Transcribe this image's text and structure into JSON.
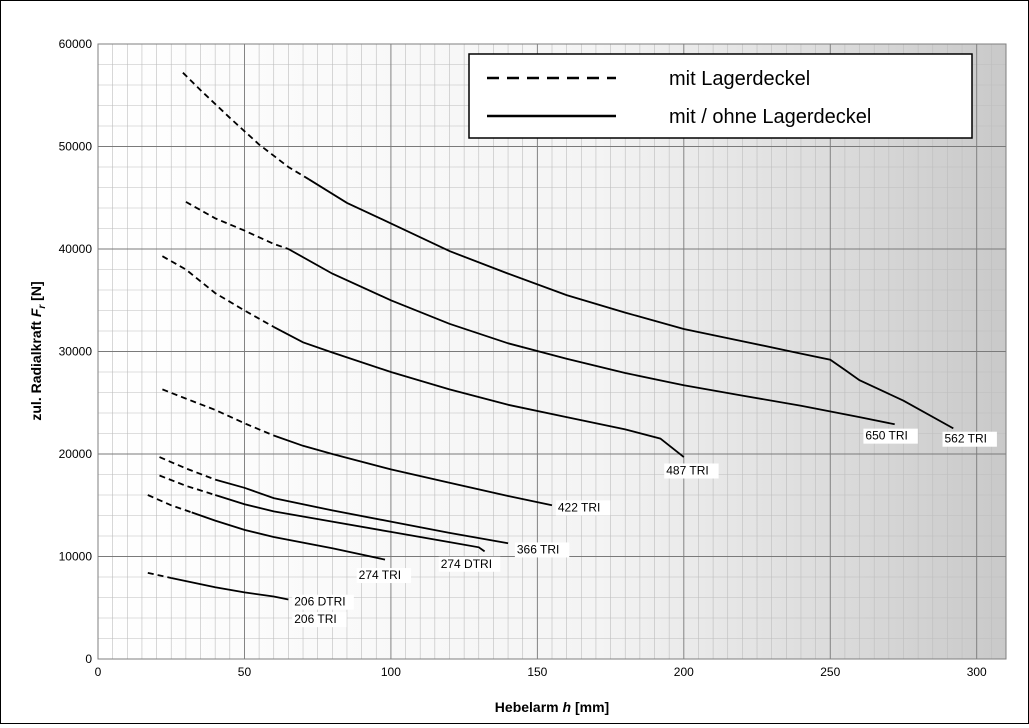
{
  "chart_data": {
    "type": "line",
    "xlabel_main": "Hebelarm ",
    "xlabel_var": "h",
    "xlabel_unit": " [mm]",
    "ylabel_main": "zul. Radialkraft ",
    "ylabel_var": "F",
    "ylabel_sub": "r",
    "ylabel_unit": " [N]",
    "xlim": [
      0,
      310
    ],
    "ylim": [
      0,
      60000
    ],
    "x_ticks": [
      0,
      50,
      100,
      150,
      200,
      250,
      300
    ],
    "y_ticks": [
      0,
      10000,
      20000,
      30000,
      40000,
      50000,
      60000
    ],
    "grid": true,
    "legend_position": "top-right",
    "legend": [
      {
        "label": "mit Lagerdeckel",
        "style": "dashed"
      },
      {
        "label": "mit / ohne Lagerdeckel",
        "style": "solid"
      }
    ],
    "series": [
      {
        "name": "562 TRI",
        "dashed": [
          [
            29,
            57200
          ],
          [
            35,
            55500
          ],
          [
            45,
            52800
          ],
          [
            55,
            50200
          ],
          [
            65,
            48000
          ],
          [
            72,
            46800
          ]
        ],
        "solid": [
          [
            72,
            46800
          ],
          [
            85,
            44500
          ],
          [
            100,
            42500
          ],
          [
            120,
            39800
          ],
          [
            140,
            37600
          ],
          [
            160,
            35500
          ],
          [
            180,
            33800
          ],
          [
            200,
            32200
          ],
          [
            220,
            31000
          ],
          [
            240,
            29800
          ],
          [
            250,
            29200
          ],
          [
            255,
            28200
          ],
          [
            260,
            27200
          ],
          [
            275,
            25200
          ],
          [
            292,
            22500
          ]
        ]
      },
      {
        "name": "650 TRI",
        "dashed": [
          [
            30,
            44600
          ],
          [
            40,
            43000
          ],
          [
            50,
            41800
          ],
          [
            60,
            40500
          ],
          [
            65,
            40000
          ]
        ],
        "solid": [
          [
            65,
            40000
          ],
          [
            80,
            37600
          ],
          [
            100,
            35000
          ],
          [
            120,
            32700
          ],
          [
            140,
            30800
          ],
          [
            160,
            29300
          ],
          [
            180,
            27900
          ],
          [
            200,
            26700
          ],
          [
            220,
            25700
          ],
          [
            240,
            24700
          ],
          [
            260,
            23600
          ],
          [
            272,
            22900
          ]
        ]
      },
      {
        "name": "487 TRI",
        "dashed": [
          [
            22,
            39300
          ],
          [
            30,
            38000
          ],
          [
            40,
            35700
          ],
          [
            50,
            34000
          ],
          [
            60,
            32400
          ]
        ],
        "solid": [
          [
            60,
            32400
          ],
          [
            70,
            30900
          ],
          [
            80,
            29900
          ],
          [
            100,
            28000
          ],
          [
            120,
            26300
          ],
          [
            140,
            24800
          ],
          [
            160,
            23600
          ],
          [
            180,
            22400
          ],
          [
            192,
            21500
          ],
          [
            200,
            19700
          ]
        ]
      },
      {
        "name": "422 TRI",
        "dashed": [
          [
            22,
            26300
          ],
          [
            30,
            25400
          ],
          [
            40,
            24300
          ],
          [
            50,
            23000
          ],
          [
            60,
            21800
          ]
        ],
        "solid": [
          [
            60,
            21800
          ],
          [
            70,
            20800
          ],
          [
            80,
            20000
          ],
          [
            100,
            18500
          ],
          [
            120,
            17200
          ],
          [
            140,
            15900
          ],
          [
            155,
            15000
          ]
        ]
      },
      {
        "name": "366 TRI",
        "dashed": [
          [
            21,
            19700
          ],
          [
            30,
            18600
          ],
          [
            40,
            17500
          ]
        ],
        "solid": [
          [
            40,
            17500
          ],
          [
            50,
            16700
          ],
          [
            60,
            15700
          ],
          [
            80,
            14500
          ],
          [
            100,
            13400
          ],
          [
            120,
            12300
          ],
          [
            140,
            11300
          ]
        ]
      },
      {
        "name": "274 DTRI",
        "dashed": [
          [
            21,
            17900
          ],
          [
            30,
            16900
          ],
          [
            40,
            16000
          ]
        ],
        "solid": [
          [
            40,
            16000
          ],
          [
            50,
            15100
          ],
          [
            60,
            14400
          ],
          [
            80,
            13400
          ],
          [
            100,
            12400
          ],
          [
            120,
            11400
          ],
          [
            130,
            10900
          ],
          [
            132,
            10500
          ]
        ]
      },
      {
        "name": "274 TRI",
        "dashed": [
          [
            17,
            16000
          ],
          [
            25,
            15000
          ],
          [
            32,
            14300
          ]
        ],
        "solid": [
          [
            32,
            14300
          ],
          [
            40,
            13500
          ],
          [
            50,
            12600
          ],
          [
            60,
            11900
          ],
          [
            80,
            10800
          ],
          [
            98,
            9700
          ]
        ]
      },
      {
        "name": "206 DTRI\n206 TRI",
        "dashed": [
          [
            17,
            8400
          ],
          [
            25,
            7900
          ]
        ],
        "solid": [
          [
            25,
            7900
          ],
          [
            40,
            7000
          ],
          [
            50,
            6500
          ],
          [
            60,
            6100
          ],
          [
            65,
            5800
          ]
        ]
      }
    ],
    "annotations": [
      {
        "text": "650 TRI",
        "x": 262,
        "y": 21400
      },
      {
        "text": "562 TRI",
        "x": 289,
        "y": 21100
      },
      {
        "text": "487 TRI",
        "x": 194,
        "y": 18000
      },
      {
        "text": "422 TRI",
        "x": 157,
        "y": 14400
      },
      {
        "text": "366 TRI",
        "x": 143,
        "y": 10300
      },
      {
        "text": "274 DTRI",
        "x": 117,
        "y": 8900
      },
      {
        "text": "274 TRI",
        "x": 89,
        "y": 7800
      },
      {
        "text": "206 DTRI",
        "x": 67,
        "y": 5200
      },
      {
        "text": "206 TRI",
        "x": 67,
        "y": 3500
      }
    ]
  }
}
